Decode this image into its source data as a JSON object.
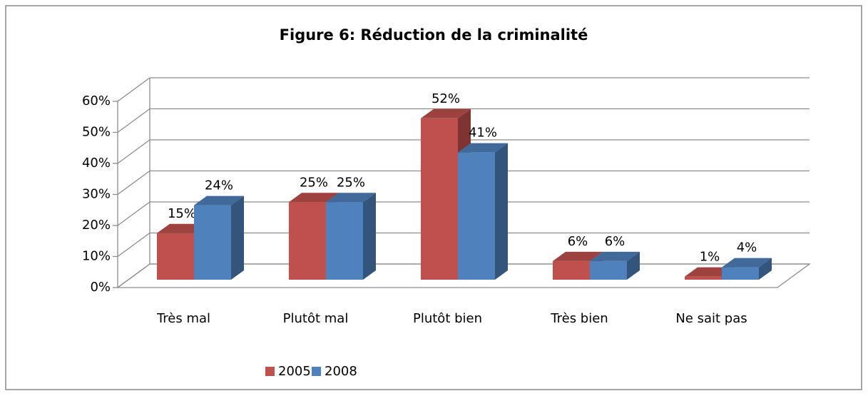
{
  "chart_data": {
    "type": "bar3d",
    "title": "Figure 6: Réduction de la criminalité",
    "categories": [
      "Très mal",
      "Plutôt mal",
      "Plutôt bien",
      "Très bien",
      "Ne sait pas"
    ],
    "series": [
      {
        "name": "2005",
        "color": "#c0504d",
        "values": [
          15,
          25,
          52,
          6,
          1
        ],
        "value_labels": [
          "15%",
          "25%",
          "52%",
          "6%",
          "1%"
        ]
      },
      {
        "name": "2008",
        "color": "#4f81bd",
        "values": [
          24,
          25,
          41,
          6,
          4
        ],
        "value_labels": [
          "24%",
          "25%",
          "41%",
          "6%",
          "4%"
        ]
      }
    ],
    "ylim": [
      0,
      60
    ],
    "yticks": [
      {
        "value": 0,
        "label": "0%"
      },
      {
        "value": 10,
        "label": "10%"
      },
      {
        "value": 20,
        "label": "20%"
      },
      {
        "value": 30,
        "label": "30%"
      },
      {
        "value": 40,
        "label": "40%"
      },
      {
        "value": 50,
        "label": "50%"
      },
      {
        "value": 60,
        "label": "60%"
      }
    ],
    "grid": true,
    "legend": "bottom"
  }
}
